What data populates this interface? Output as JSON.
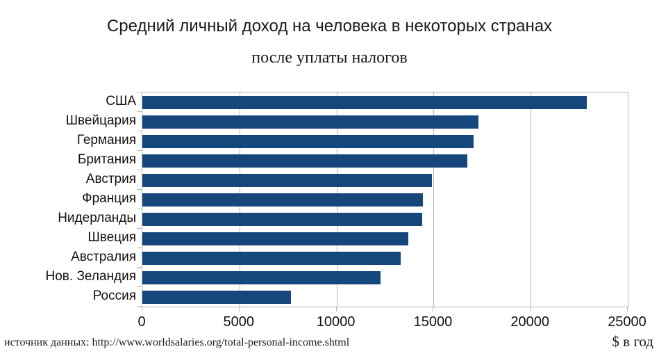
{
  "title": {
    "line1": "Средний личный доход на человека в некоторых странах",
    "line2": "после уплаты налогов"
  },
  "footer": {
    "source": "источник данных: http://www.worldsalaries.org/total-personal-income.shtml",
    "axis_unit": "$ в год"
  },
  "colors": {
    "bar": "#16477C",
    "grid": "#B4B4B4",
    "text": "#1A1A1A"
  },
  "chart_data": {
    "type": "bar",
    "orientation": "horizontal",
    "title": "Средний личный доход на человека в некоторых странах после уплаты налогов",
    "xlabel": "$ в год",
    "ylabel": "",
    "categories": [
      "США",
      "Швейцария",
      "Германия",
      "Британия",
      "Австрия",
      "Франция",
      "Нидерланды",
      "Швеция",
      "Австралия",
      "Нов. Зеландия",
      "Россия"
    ],
    "values": [
      22900,
      17300,
      17050,
      16750,
      14900,
      14450,
      14400,
      13700,
      13300,
      12250,
      7650
    ],
    "xlim": [
      0,
      25000
    ],
    "xticks": [
      0,
      5000,
      10000,
      15000,
      20000,
      25000
    ],
    "xtick_labels": [
      "0",
      "5000",
      "10000",
      "15000",
      "20000",
      "25000"
    ],
    "grid": "vertical-gridlines-on",
    "legend": "none",
    "bar_color": "#16477C"
  }
}
